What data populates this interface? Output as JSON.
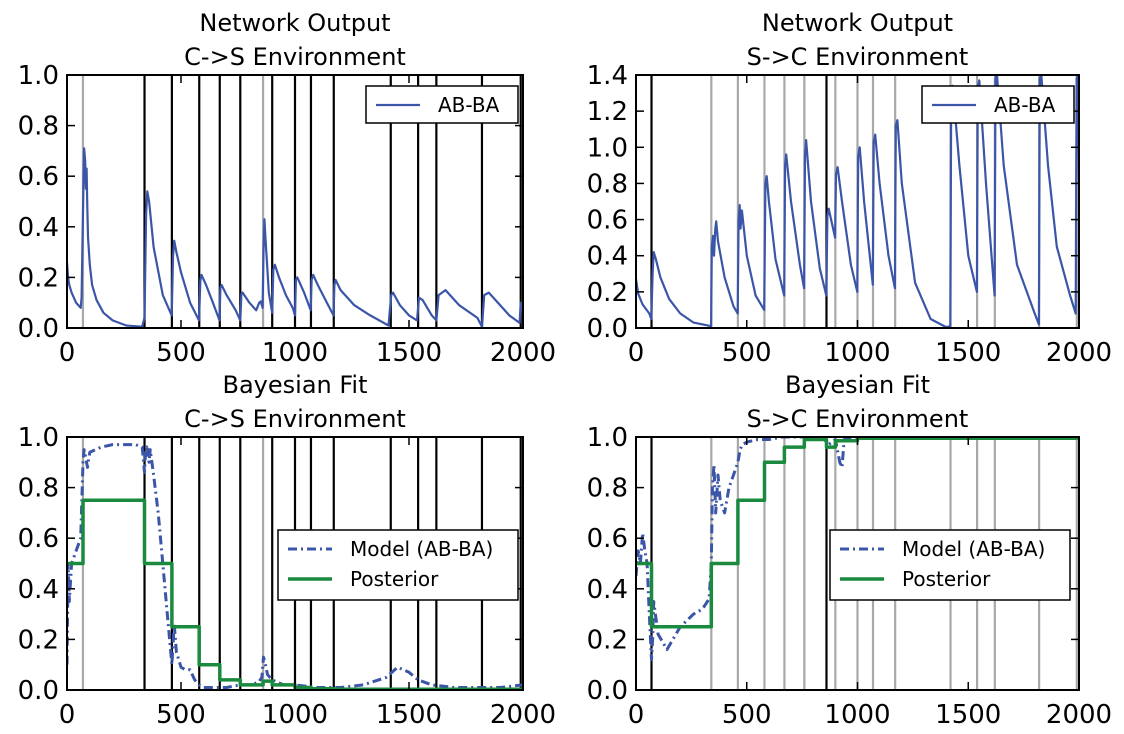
{
  "chart_data": [
    {
      "type": "line",
      "title": "Network Output",
      "subtitle": "C->S Environment",
      "xlim": [
        0,
        2000
      ],
      "ylim": [
        0,
        1.0
      ],
      "xticks": [
        "0",
        "500",
        "1000",
        "1500",
        "2000"
      ],
      "yticks": [
        "0.0",
        "0.2",
        "0.4",
        "0.6",
        "0.8",
        "1.0"
      ],
      "vlines_black": [
        340,
        460,
        580,
        670,
        760,
        900,
        1000,
        1070,
        1170,
        1420,
        1540,
        1620,
        1820,
        1990
      ],
      "vlines_gray": [
        70,
        860
      ],
      "legend": {
        "position": "upper-right",
        "entries": [
          "AB-BA"
        ]
      },
      "series": [
        {
          "name": "AB-BA",
          "color": "#3b55a8",
          "style": "solid",
          "x": [
            0,
            5,
            10,
            20,
            30,
            40,
            50,
            60,
            64,
            70,
            75,
            80,
            83,
            86,
            89,
            92,
            100,
            110,
            130,
            160,
            200,
            260,
            330,
            340,
            347,
            352,
            360,
            380,
            420,
            459,
            465,
            470,
            480,
            500,
            540,
            579,
            585,
            590,
            610,
            640,
            669,
            673,
            678,
            700,
            740,
            760,
            765,
            770,
            800,
            830,
            843,
            850,
            858,
            862,
            866,
            870,
            885,
            900,
            905,
            912,
            930,
            960,
            990,
            1000,
            1004,
            1010,
            1040,
            1069,
            1073,
            1080,
            1100,
            1140,
            1169,
            1173,
            1178,
            1200,
            1260,
            1330,
            1410,
            1422,
            1430,
            1460,
            1500,
            1535,
            1544,
            1560,
            1600,
            1620,
            1630,
            1660,
            1720,
            1800,
            1820,
            1830,
            1850,
            1900,
            1940,
            1985,
            1990,
            2000
          ],
          "values": [
            0.26,
            0.2,
            0.17,
            0.14,
            0.12,
            0.1,
            0.09,
            0.08,
            0.12,
            0.46,
            0.71,
            0.66,
            0.55,
            0.63,
            0.48,
            0.36,
            0.25,
            0.17,
            0.11,
            0.06,
            0.03,
            0.01,
            0.005,
            0.04,
            0.45,
            0.54,
            0.5,
            0.32,
            0.13,
            0.05,
            0.28,
            0.345,
            0.3,
            0.22,
            0.1,
            0.03,
            0.19,
            0.21,
            0.17,
            0.1,
            0.03,
            0.16,
            0.17,
            0.13,
            0.07,
            0.03,
            0.135,
            0.14,
            0.1,
            0.07,
            0.1,
            0.105,
            0.08,
            0.3,
            0.43,
            0.36,
            0.14,
            0.06,
            0.23,
            0.25,
            0.2,
            0.13,
            0.08,
            0.05,
            0.19,
            0.2,
            0.14,
            0.07,
            0.19,
            0.21,
            0.17,
            0.1,
            0.05,
            0.17,
            0.19,
            0.15,
            0.09,
            0.05,
            0.01,
            0.13,
            0.14,
            0.09,
            0.05,
            0.03,
            0.12,
            0.11,
            0.05,
            0.03,
            0.13,
            0.15,
            0.09,
            0.04,
            0.005,
            0.13,
            0.14,
            0.09,
            0.05,
            0.02,
            0.1,
            0.08
          ]
        }
      ]
    },
    {
      "type": "line",
      "title": "Network Output",
      "subtitle": "S->C Environment",
      "xlim": [
        0,
        2000
      ],
      "ylim": [
        0,
        1.4
      ],
      "xticks": [
        "0",
        "500",
        "1000",
        "1500",
        "2000"
      ],
      "yticks": [
        "0.0",
        "0.2",
        "0.4",
        "0.6",
        "0.8",
        "1.0",
        "1.2",
        "1.4"
      ],
      "vlines_black": [
        70,
        860
      ],
      "vlines_gray": [
        340,
        460,
        580,
        670,
        760,
        900,
        1000,
        1070,
        1170,
        1420,
        1540,
        1620,
        1820,
        1990
      ],
      "legend": {
        "position": "upper-right",
        "entries": [
          "AB-BA"
        ]
      },
      "series": [
        {
          "name": "AB-BA",
          "color": "#3b55a8",
          "style": "solid",
          "x": [
            0,
            10,
            30,
            60,
            69,
            75,
            80,
            90,
            110,
            150,
            200,
            260,
            339,
            342,
            348,
            352,
            358,
            362,
            370,
            400,
            440,
            459,
            463,
            468,
            472,
            478,
            500,
            540,
            579,
            584,
            590,
            600,
            630,
            669,
            673,
            678,
            700,
            740,
            759,
            763,
            768,
            790,
            830,
            859,
            864,
            870,
            890,
            899,
            903,
            910,
            930,
            970,
            999,
            1003,
            1010,
            1030,
            1069,
            1073,
            1080,
            1100,
            1140,
            1169,
            1173,
            1180,
            1200,
            1260,
            1330,
            1400,
            1419,
            1423,
            1430,
            1460,
            1500,
            1539,
            1543,
            1550,
            1580,
            1619,
            1623,
            1630,
            1660,
            1720,
            1800,
            1819,
            1823,
            1830,
            1860,
            1900,
            1960,
            1985,
            1989,
            1995,
            2000
          ],
          "values": [
            0.27,
            0.19,
            0.13,
            0.08,
            0.05,
            0.3,
            0.42,
            0.38,
            0.28,
            0.16,
            0.08,
            0.03,
            0.01,
            0.45,
            0.51,
            0.4,
            0.55,
            0.59,
            0.48,
            0.28,
            0.12,
            0.08,
            0.6,
            0.68,
            0.55,
            0.65,
            0.4,
            0.18,
            0.1,
            0.8,
            0.84,
            0.7,
            0.38,
            0.18,
            0.9,
            0.96,
            0.7,
            0.35,
            0.22,
            0.95,
            1.04,
            0.7,
            0.33,
            0.18,
            0.62,
            0.66,
            0.55,
            0.5,
            0.85,
            0.89,
            0.7,
            0.35,
            0.2,
            0.95,
            1.0,
            0.7,
            0.24,
            1.03,
            1.07,
            0.8,
            0.4,
            0.22,
            1.12,
            1.15,
            0.8,
            0.25,
            0.05,
            0.005,
            0.01,
            1.3,
            1.34,
            0.9,
            0.4,
            0.2,
            1.34,
            1.37,
            0.8,
            0.18,
            1.38,
            1.4,
            0.9,
            0.35,
            0.08,
            0.02,
            1.38,
            1.4,
            0.9,
            0.45,
            0.18,
            0.08,
            1.38,
            1.4,
            0.8
          ]
        }
      ]
    },
    {
      "type": "line",
      "title": "Bayesian Fit",
      "subtitle": "C->S Environment",
      "xlim": [
        0,
        2000
      ],
      "ylim": [
        0,
        1.0
      ],
      "xticks": [
        "0",
        "500",
        "1000",
        "1500",
        "2000"
      ],
      "yticks": [
        "0.0",
        "0.2",
        "0.4",
        "0.6",
        "0.8",
        "1.0"
      ],
      "vlines_black": [
        340,
        460,
        580,
        670,
        760,
        900,
        1000,
        1070,
        1170,
        1420,
        1540,
        1620,
        1820,
        1990
      ],
      "vlines_gray": [
        70,
        860
      ],
      "legend": {
        "position": "center-right",
        "entries": [
          "Model (AB-BA)",
          "Posterior"
        ]
      },
      "series": [
        {
          "name": "Model (AB-BA)",
          "color": "#3b55a8",
          "style": "dashdot",
          "x": [
            0,
            5,
            10,
            20,
            40,
            60,
            70,
            75,
            80,
            90,
            100,
            150,
            200,
            250,
            300,
            330,
            340,
            345,
            350,
            360,
            365,
            380,
            400,
            420,
            440,
            460,
            470,
            480,
            500,
            520,
            540,
            560,
            580,
            600,
            620,
            660,
            700,
            760,
            800,
            840,
            855,
            862,
            870,
            880,
            900,
            950,
            1000,
            1100,
            1200,
            1300,
            1400,
            1450,
            1500,
            1540,
            1600,
            1700,
            1800,
            1900,
            2000
          ],
          "values": [
            0.1,
            0.5,
            0.35,
            0.5,
            0.55,
            0.6,
            0.9,
            0.95,
            0.93,
            0.88,
            0.94,
            0.96,
            0.97,
            0.97,
            0.97,
            0.96,
            0.86,
            0.95,
            0.97,
            0.9,
            0.95,
            0.85,
            0.7,
            0.5,
            0.3,
            0.1,
            0.26,
            0.15,
            0.09,
            0.08,
            0.08,
            0.04,
            0.02,
            0.01,
            0.01,
            0.01,
            0.01,
            0.02,
            0.02,
            0.03,
            0.05,
            0.13,
            0.1,
            0.06,
            0.04,
            0.02,
            0.02,
            0.01,
            0.01,
            0.02,
            0.05,
            0.09,
            0.07,
            0.04,
            0.02,
            0.01,
            0.01,
            0.01,
            0.02
          ]
        },
        {
          "name": "Posterior",
          "color": "#1a8a3e",
          "style": "steps",
          "x": [
            0,
            70,
            70,
            340,
            340,
            460,
            460,
            580,
            580,
            670,
            670,
            760,
            760,
            860,
            860,
            900,
            900,
            1000,
            1000,
            1070,
            1070,
            1170,
            1170,
            2000
          ],
          "values": [
            0.5,
            0.5,
            0.75,
            0.75,
            0.5,
            0.5,
            0.25,
            0.25,
            0.1,
            0.1,
            0.04,
            0.04,
            0.02,
            0.02,
            0.035,
            0.035,
            0.02,
            0.02,
            0.01,
            0.01,
            0.005,
            0.005,
            0.003,
            0.003
          ]
        }
      ]
    },
    {
      "type": "line",
      "title": "Bayesian Fit",
      "subtitle": "S->C Environment",
      "xlim": [
        0,
        2000
      ],
      "ylim": [
        0,
        1.0
      ],
      "xticks": [
        "0",
        "500",
        "1000",
        "1500",
        "2000"
      ],
      "yticks": [
        "0.0",
        "0.2",
        "0.4",
        "0.6",
        "0.8",
        "1.0"
      ],
      "vlines_black": [
        70,
        860
      ],
      "vlines_gray": [
        340,
        460,
        580,
        670,
        760,
        900,
        1000,
        1070,
        1170,
        1420,
        1540,
        1620,
        1820,
        1990
      ],
      "legend": {
        "position": "center-right",
        "entries": [
          "Model (AB-BA)",
          "Posterior"
        ]
      },
      "series": [
        {
          "name": "Model (AB-BA)",
          "color": "#3b55a8",
          "style": "dashdot",
          "x": [
            0,
            10,
            20,
            30,
            40,
            50,
            60,
            70,
            75,
            80,
            100,
            140,
            200,
            260,
            300,
            330,
            340,
            345,
            352,
            360,
            370,
            380,
            400,
            420,
            440,
            460,
            470,
            480,
            500,
            550,
            600,
            660,
            700,
            760,
            800,
            850,
            870,
            900,
            920,
            930,
            940,
            960,
            1000,
            1200,
            1500,
            1800,
            2000
          ],
          "values": [
            0.45,
            0.55,
            0.5,
            0.62,
            0.55,
            0.5,
            0.3,
            0.12,
            0.2,
            0.35,
            0.22,
            0.16,
            0.25,
            0.3,
            0.32,
            0.36,
            0.5,
            0.8,
            0.89,
            0.7,
            0.85,
            0.75,
            0.7,
            0.8,
            0.85,
            0.9,
            0.95,
            0.97,
            0.98,
            0.99,
            0.99,
            1.0,
            1.0,
            1.0,
            1.0,
            0.99,
            0.97,
            0.99,
            0.9,
            0.88,
            0.99,
            0.99,
            1.0,
            1.0,
            1.0,
            1.0,
            1.0
          ]
        },
        {
          "name": "Posterior",
          "color": "#1a8a3e",
          "style": "steps",
          "x": [
            0,
            70,
            70,
            340,
            340,
            460,
            460,
            580,
            580,
            670,
            670,
            760,
            760,
            860,
            860,
            900,
            900,
            1000,
            1000,
            2000
          ],
          "values": [
            0.5,
            0.5,
            0.25,
            0.25,
            0.5,
            0.5,
            0.75,
            0.75,
            0.9,
            0.9,
            0.96,
            0.96,
            0.99,
            0.99,
            0.96,
            0.96,
            0.985,
            0.985,
            0.995,
            0.995
          ]
        }
      ]
    }
  ]
}
